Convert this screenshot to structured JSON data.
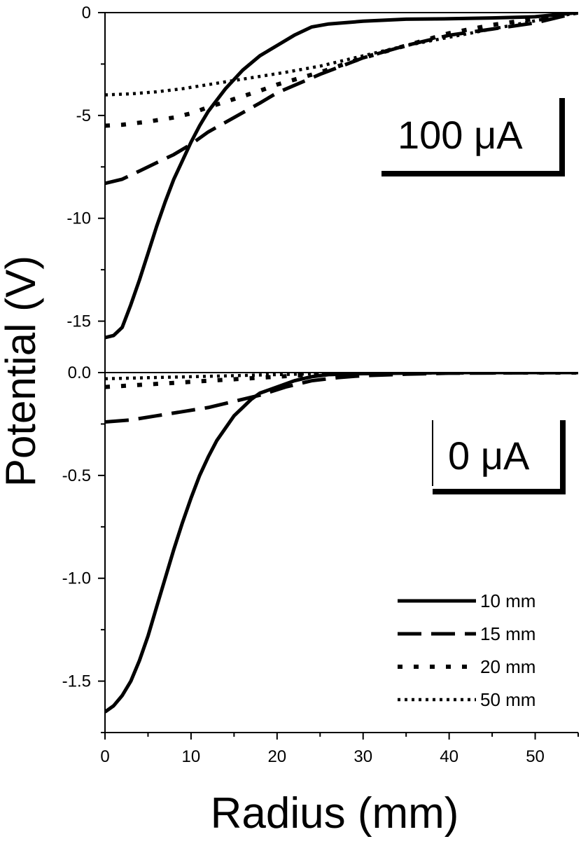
{
  "chart_data": {
    "type": "line",
    "xlabel": "Radius (mm)",
    "ylabel": "Potential (V)",
    "xlim": [
      0,
      55
    ],
    "x_ticks": [
      "0",
      "10",
      "20",
      "30",
      "40",
      "50"
    ],
    "legend": {
      "placement": "bottom-right of lower panel",
      "entries": [
        "10 mm",
        "15 mm",
        "20 mm",
        "50 mm"
      ]
    },
    "panels": [
      {
        "label": "100 μA",
        "ylim": [
          -17.5,
          0
        ],
        "y_ticks": [
          "0",
          "-5",
          "-10",
          "-15"
        ],
        "series": [
          {
            "name": "10 mm",
            "style": "solid",
            "x": [
              0,
              1,
              2,
              3,
              4,
              5,
              6,
              7,
              8,
              9,
              10,
              11,
              12,
              14,
              16,
              18,
              20,
              22,
              24,
              26,
              30,
              35,
              40,
              45,
              50,
              55
            ],
            "y": [
              -15.8,
              -15.7,
              -15.3,
              -14.2,
              -13.0,
              -11.7,
              -10.4,
              -9.2,
              -8.1,
              -7.2,
              -6.3,
              -5.5,
              -4.8,
              -3.7,
              -2.8,
              -2.1,
              -1.6,
              -1.1,
              -0.7,
              -0.55,
              -0.42,
              -0.32,
              -0.3,
              -0.26,
              -0.2,
              0
            ]
          },
          {
            "name": "15 mm",
            "style": "dashed",
            "x": [
              0,
              2,
              4,
              6,
              8,
              10,
              12,
              15,
              18,
              20,
              25,
              30,
              35,
              40,
              45,
              50,
              52,
              55
            ],
            "y": [
              -8.3,
              -8.1,
              -7.7,
              -7.3,
              -6.9,
              -6.4,
              -5.8,
              -5.1,
              -4.4,
              -3.9,
              -3.0,
              -2.2,
              -1.6,
              -1.1,
              -0.8,
              -0.5,
              -0.3,
              0
            ]
          },
          {
            "name": "20 mm",
            "style": "dotted-coarse",
            "x": [
              0,
              2,
              5,
              8,
              10,
              12,
              15,
              18,
              20,
              25,
              30,
              35,
              40,
              45,
              50,
              55
            ],
            "y": [
              -5.5,
              -5.45,
              -5.3,
              -5.1,
              -4.9,
              -4.6,
              -4.2,
              -3.8,
              -3.5,
              -2.9,
              -2.2,
              -1.6,
              -1.0,
              -0.6,
              -0.3,
              0
            ]
          },
          {
            "name": "50 mm",
            "style": "dotted-fine",
            "x": [
              0,
              3,
              6,
              9,
              12,
              15,
              18,
              21,
              25,
              30,
              35,
              40,
              45,
              50,
              55
            ],
            "y": [
              -4.0,
              -3.95,
              -3.85,
              -3.7,
              -3.5,
              -3.3,
              -3.1,
              -2.9,
              -2.6,
              -2.1,
              -1.6,
              -1.2,
              -0.8,
              -0.4,
              0
            ]
          }
        ]
      },
      {
        "label": "0 μA",
        "ylim": [
          -1.75,
          0
        ],
        "y_ticks": [
          "0.0",
          "-0.5",
          "-1.0",
          "-1.5"
        ],
        "series": [
          {
            "name": "10 mm",
            "style": "solid",
            "x": [
              0,
              1,
              2,
              3,
              4,
              5,
              6,
              7,
              8,
              9,
              10,
              11,
              12,
              13,
              14,
              15,
              16,
              17,
              18,
              20,
              22,
              24,
              26,
              30,
              40,
              55
            ],
            "y": [
              -1.65,
              -1.62,
              -1.57,
              -1.5,
              -1.4,
              -1.28,
              -1.14,
              -1.0,
              -0.86,
              -0.73,
              -0.61,
              -0.5,
              -0.41,
              -0.33,
              -0.27,
              -0.21,
              -0.17,
              -0.13,
              -0.1,
              -0.07,
              -0.04,
              -0.02,
              -0.01,
              -0.005,
              0,
              0
            ]
          },
          {
            "name": "15 mm",
            "style": "dashed",
            "x": [
              0,
              3,
              6,
              9,
              12,
              15,
              18,
              21,
              24,
              27,
              30,
              35,
              40,
              55
            ],
            "y": [
              -0.24,
              -0.23,
              -0.21,
              -0.19,
              -0.17,
              -0.14,
              -0.11,
              -0.07,
              -0.04,
              -0.025,
              -0.015,
              -0.008,
              -0.003,
              0
            ]
          },
          {
            "name": "20 mm",
            "style": "dotted-coarse",
            "x": [
              0,
              4,
              8,
              12,
              16,
              20,
              24,
              28,
              32,
              55
            ],
            "y": [
              -0.07,
              -0.06,
              -0.05,
              -0.04,
              -0.03,
              -0.02,
              -0.01,
              -0.005,
              0,
              0
            ]
          },
          {
            "name": "50 mm",
            "style": "dotted-fine",
            "x": [
              0,
              5,
              10,
              15,
              20,
              25,
              30,
              55
            ],
            "y": [
              -0.03,
              -0.025,
              -0.02,
              -0.015,
              -0.01,
              -0.005,
              0,
              0
            ]
          }
        ]
      }
    ]
  }
}
